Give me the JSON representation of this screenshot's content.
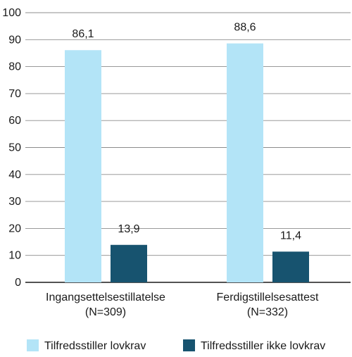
{
  "chart_data": {
    "type": "bar",
    "title": "",
    "xlabel": "",
    "ylabel": "",
    "ylim": [
      0,
      100
    ],
    "yticks": [
      0,
      10,
      20,
      30,
      40,
      50,
      60,
      70,
      80,
      90,
      100
    ],
    "grid": true,
    "legend_position": "bottom",
    "categories": [
      [
        "Ingangsettelsestillatelse",
        "(N=309)"
      ],
      [
        "Ferdigstillelsesattest",
        "(N=332)"
      ]
    ],
    "series": [
      {
        "name": "Tilfredsstiller lovkrav",
        "color": "#b3e4f7",
        "values": [
          86.1,
          88.6
        ],
        "labels": [
          "86,1",
          "88,6"
        ]
      },
      {
        "name": "Tilfredsstiller ikke lovkrav",
        "color": "#17536f",
        "values": [
          13.9,
          11.4
        ],
        "labels": [
          "13,9",
          "11,4"
        ]
      }
    ],
    "colors": {
      "grid": "#8c8c8c",
      "axis": "#1a1a1a",
      "text": "#1a1a1a"
    }
  }
}
